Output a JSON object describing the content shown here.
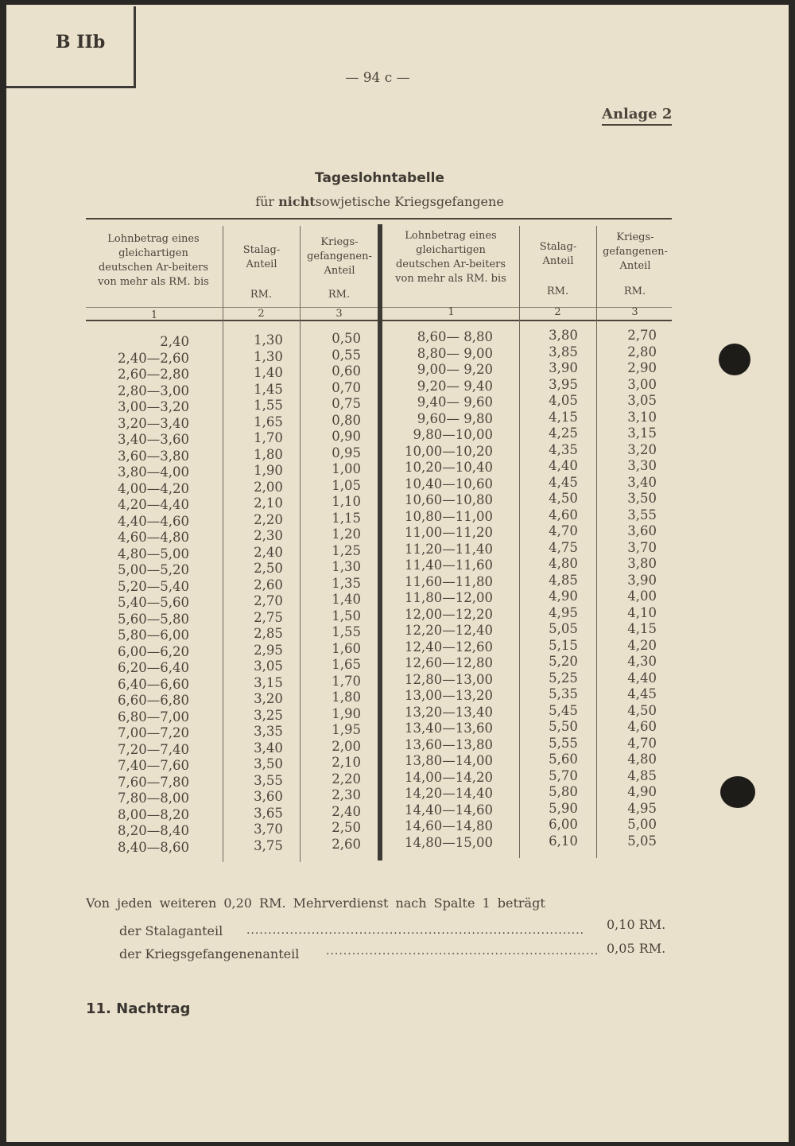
{
  "header": {
    "section_box": "B IIb",
    "page_number": "— 94 c —",
    "annex": "Anlage 2"
  },
  "title": "Tageslohntabelle",
  "subtitle": {
    "prefix": "für ",
    "bold": "nicht",
    "suffix": "sowjetische Kriegsgefangene"
  },
  "table": {
    "columns": [
      {
        "header": "Lohnbetrag eines gleichartigen deutschen Ar-beiters von mehr als RM. bis",
        "unit": "",
        "number": "1"
      },
      {
        "header": "Stalag-Anteil",
        "unit": "RM.",
        "number": "2"
      },
      {
        "header": "Kriegs-gefangenen-Anteil",
        "unit": "RM.",
        "number": "3"
      }
    ],
    "left": {
      "range": [
        "2,40",
        "2,40—2,60",
        "2,60—2,80",
        "2,80—3,00",
        "3,00—3,20",
        "3,20—3,40",
        "3,40—3,60",
        "3,60—3,80",
        "3,80—4,00",
        "4,00—4,20",
        "4,20—4,40",
        "4,40—4,60",
        "4,60—4,80",
        "4,80—5,00",
        "5,00—5,20",
        "5,20—5,40",
        "5,40—5,60",
        "5,60—5,80",
        "5,80—6,00",
        "6,00—6,20",
        "6,20—6,40",
        "6,40—6,60",
        "6,60—6,80",
        "6,80—7,00",
        "7,00—7,20",
        "7,20—7,40",
        "7,40—7,60",
        "7,60—7,80",
        "7,80—8,00",
        "8,00—8,20",
        "8,20—8,40",
        "8,40—8,60"
      ],
      "stalag": [
        "1,30",
        "1,30",
        "1,40",
        "1,45",
        "1,55",
        "1,65",
        "1,70",
        "1,80",
        "1,90",
        "2,00",
        "2,10",
        "2,20",
        "2,30",
        "2,40",
        "2,50",
        "2,60",
        "2,70",
        "2,75",
        "2,85",
        "2,95",
        "3,05",
        "3,15",
        "3,20",
        "3,25",
        "3,35",
        "3,40",
        "3,50",
        "3,55",
        "3,60",
        "3,65",
        "3,70",
        "3,75"
      ],
      "pow": [
        "0,50",
        "0,55",
        "0,60",
        "0,70",
        "0,75",
        "0,80",
        "0,90",
        "0,95",
        "1,00",
        "1,05",
        "1,10",
        "1,15",
        "1,20",
        "1,25",
        "1,30",
        "1,35",
        "1,40",
        "1,50",
        "1,55",
        "1,60",
        "1,65",
        "1,70",
        "1,80",
        "1,90",
        "1,95",
        "2,00",
        "2,10",
        "2,20",
        "2,30",
        "2,40",
        "2,50",
        "2,60"
      ]
    },
    "right": {
      "range": [
        "8,60— 8,80",
        "8,80— 9,00",
        "9,00— 9,20",
        "9,20— 9,40",
        "9,40— 9,60",
        "9,60— 9,80",
        "9,80—10,00",
        "10,00—10,20",
        "10,20—10,40",
        "10,40—10,60",
        "10,60—10,80",
        "10,80—11,00",
        "11,00—11,20",
        "11,20—11,40",
        "11,40—11,60",
        "11,60—11,80",
        "11,80—12,00",
        "12,00—12,20",
        "12,20—12,40",
        "12,40—12,60",
        "12,60—12,80",
        "12,80—13,00",
        "13,00—13,20",
        "13,20—13,40",
        "13,40—13,60",
        "13,60—13,80",
        "13,80—14,00",
        "14,00—14,20",
        "14,20—14,40",
        "14,40—14,60",
        "14,60—14,80",
        "14,80—15,00"
      ],
      "stalag": [
        "3,80",
        "3,85",
        "3,90",
        "3,95",
        "4,05",
        "4,15",
        "4,25",
        "4,35",
        "4,40",
        "4,45",
        "4,50",
        "4,60",
        "4,70",
        "4,75",
        "4,80",
        "4,85",
        "4,90",
        "4,95",
        "5,05",
        "5,15",
        "5,20",
        "5,25",
        "5,35",
        "5,45",
        "5,50",
        "5,55",
        "5,60",
        "5,70",
        "5,80",
        "5,90",
        "6,00",
        "6,10"
      ],
      "pow": [
        "2,70",
        "2,80",
        "2,90",
        "3,00",
        "3,05",
        "3,10",
        "3,15",
        "3,20",
        "3,30",
        "3,40",
        "3,50",
        "3,55",
        "3,60",
        "3,70",
        "3,80",
        "3,90",
        "4,00",
        "4,10",
        "4,15",
        "4,20",
        "4,30",
        "4,40",
        "4,45",
        "4,50",
        "4,60",
        "4,70",
        "4,80",
        "4,85",
        "4,90",
        "4,95",
        "5,00",
        "5,05"
      ]
    }
  },
  "footer": {
    "intro": "Von jeden weiteren 0,20 RM. Mehrverdienst nach Spalte 1 beträgt",
    "stalag_label": "der Stalaganteil",
    "stalag_value": "0,10 RM.",
    "pow_label": "der Kriegsgefangenenanteil",
    "pow_value": "0,05 RM.",
    "supplement": "11. Nachtrag"
  },
  "colors": {
    "paper": "#eae1cd",
    "ink": "#4a443a"
  }
}
